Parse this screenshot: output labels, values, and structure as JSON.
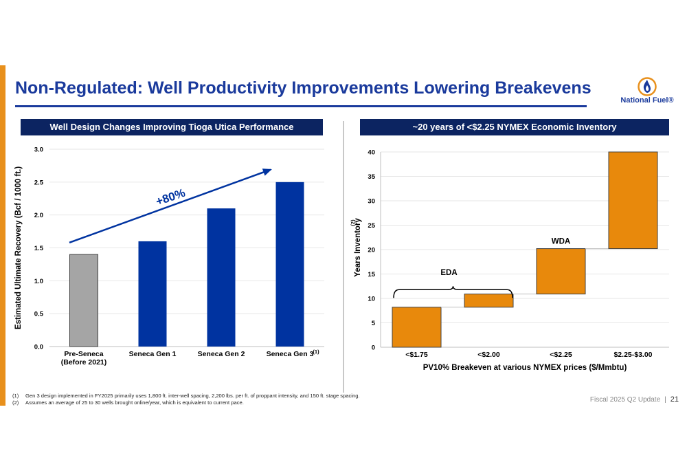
{
  "slide": {
    "title": "Non-Regulated: Well Productivity Improvements Lowering Breakevens",
    "logo_text": "National Fuel®",
    "footer_label": "Fiscal 2025 Q2 Update",
    "footer_separator": "|",
    "page_number": "21",
    "accent_color": "#e8901c",
    "brand_color": "#1a3a9c",
    "header_color": "#0c2461"
  },
  "left_panel": {
    "header": "Well Design Changes Improving Tioga Utica Performance"
  },
  "right_panel": {
    "header": "~20 years of <$2.25 NYMEX Economic Inventory"
  },
  "footnotes": [
    {
      "num": "(1)",
      "text": "Gen 3 design implemented in FY2025 primarily uses 1,800 ft. inter-well spacing, 2,200 lbs. per ft. of proppant intensity, and 150 ft. stage spacing."
    },
    {
      "num": "(2)",
      "text": "Assumes an average of 25 to 30 wells brought online/year, which is equivalent to current pace."
    }
  ],
  "chart_data": [
    {
      "type": "bar",
      "categories": [
        "Pre-Seneca\n(Before 2021)",
        "Seneca Gen 1",
        "Seneca Gen 2",
        "Seneca Gen 3"
      ],
      "category_superscripts": [
        "",
        "",
        "",
        "(1)"
      ],
      "values": [
        1.4,
        1.6,
        2.1,
        2.5
      ],
      "bar_colors": [
        "#a5a5a5",
        "#0033a0",
        "#0033a0",
        "#0033a0"
      ],
      "title": "",
      "xlabel": "",
      "ylabel": "Estimated Ultimate Recovery (Bcf / 1000 ft.)",
      "ylim": [
        0,
        3.0
      ],
      "yticks": [
        "0.0",
        "0.5",
        "1.0",
        "1.5",
        "2.0",
        "2.5",
        "3.0"
      ],
      "grid": true,
      "annotations": [
        {
          "text": "+80%",
          "color": "#0033a0",
          "type": "trend-arrow"
        }
      ]
    },
    {
      "type": "bar",
      "subtype": "waterfall",
      "categories": [
        "<$1.75",
        "<$2.00",
        "<$2.25",
        "$2.25-$3.00"
      ],
      "values": [
        8.2,
        2.7,
        9.3,
        19.8
      ],
      "bases": [
        0,
        8.2,
        10.9,
        20.2
      ],
      "bar_color": "#e8890c",
      "title": "",
      "xlabel": "PV10% Breakeven at various NYMEX prices ($/Mmbtu)",
      "ylabel": "Years Inventory",
      "ylabel_superscript": "(2)",
      "ylim": [
        0,
        40
      ],
      "yticks": [
        "0",
        "5",
        "10",
        "15",
        "20",
        "25",
        "30",
        "35",
        "40"
      ],
      "grid": true,
      "annotations": [
        {
          "text": "EDA",
          "type": "brace",
          "spans": [
            "<$1.75",
            "<$2.00"
          ]
        },
        {
          "text": "WDA",
          "type": "label",
          "over": "<$2.25"
        }
      ]
    }
  ]
}
